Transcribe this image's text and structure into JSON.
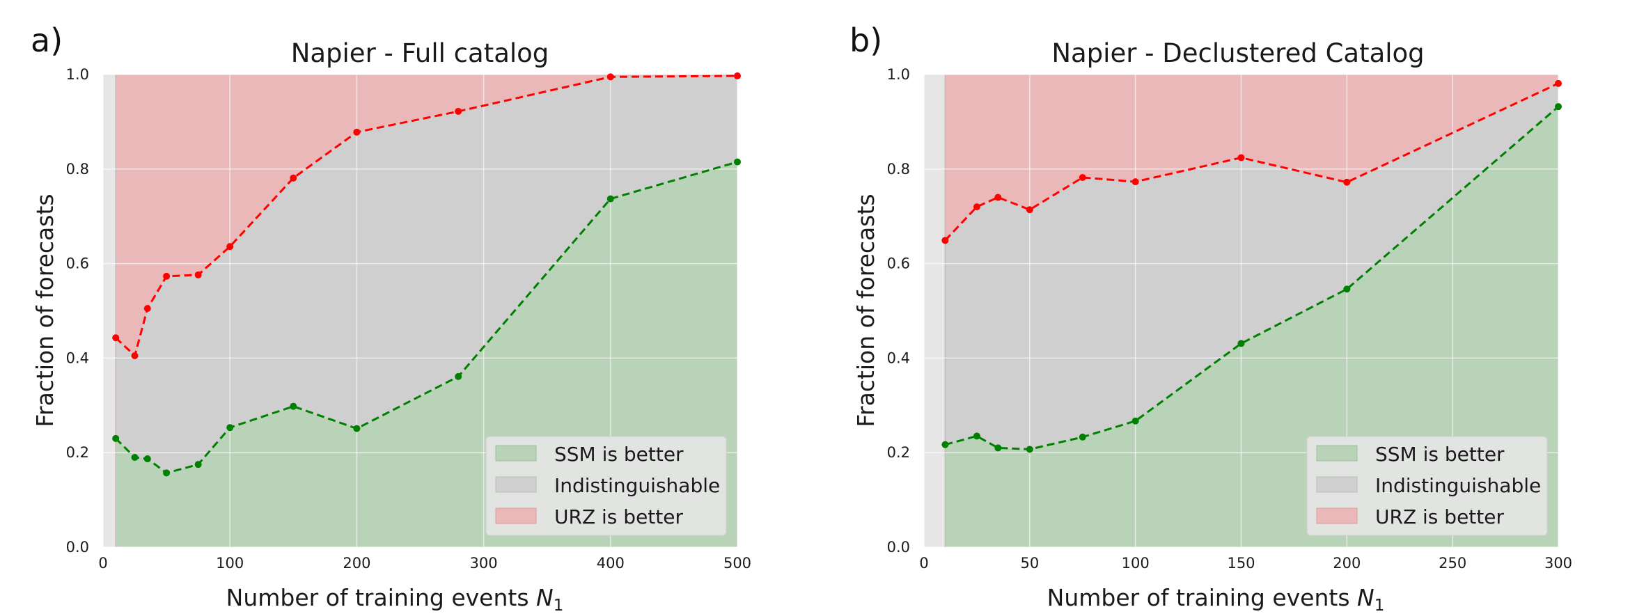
{
  "chart_data": [
    {
      "type": "area",
      "panel_label": "a)",
      "title": "Napier - Full catalog",
      "xlabel": "Number of training events",
      "xlabel_symbol": "N",
      "xlabel_sub": "1",
      "ylabel": "Fraction of forecasts",
      "xlim": [
        0,
        500
      ],
      "ylim": [
        0,
        1.0
      ],
      "xticks": [
        "0",
        "100",
        "200",
        "300",
        "400",
        "500"
      ],
      "yticks": [
        "0.0",
        "0.2",
        "0.4",
        "0.6",
        "0.8",
        "1.0"
      ],
      "grid": true,
      "legend_position": "lower-right",
      "x": [
        10,
        25,
        35,
        50,
        75,
        100,
        150,
        200,
        280,
        400,
        500
      ],
      "series": [
        {
          "name": "SSM is better",
          "color": "#008000",
          "values": [
            0.23,
            0.19,
            0.187,
            0.157,
            0.175,
            0.253,
            0.298,
            0.251,
            0.361,
            0.737,
            0.815
          ]
        },
        {
          "name": "URZ is better",
          "color": "#ff0000",
          "values": [
            0.443,
            0.405,
            0.505,
            0.573,
            0.576,
            0.636,
            0.781,
            0.878,
            0.922,
            0.995,
            0.997
          ]
        }
      ],
      "legend": [
        {
          "label": "SSM is better",
          "color": "#b9d3b9"
        },
        {
          "label": "Indistinguishable",
          "color": "#cfcfcf"
        },
        {
          "label": "URZ is better",
          "color": "#ebb8b9"
        }
      ]
    },
    {
      "type": "area",
      "panel_label": "b)",
      "title": "Napier - Declustered Catalog",
      "xlabel": "Number of training events",
      "xlabel_symbol": "N",
      "xlabel_sub": "1",
      "ylabel": "Fraction of forecasts",
      "xlim": [
        0,
        300
      ],
      "ylim": [
        0,
        1.0
      ],
      "xticks": [
        "0",
        "50",
        "100",
        "150",
        "200",
        "250",
        "300"
      ],
      "yticks": [
        "0.0",
        "0.2",
        "0.4",
        "0.6",
        "0.8",
        "1.0"
      ],
      "grid": true,
      "legend_position": "lower-right",
      "x": [
        10,
        25,
        35,
        50,
        75,
        100,
        150,
        200,
        300
      ],
      "series": [
        {
          "name": "SSM is better",
          "color": "#008000",
          "values": [
            0.217,
            0.235,
            0.21,
            0.207,
            0.233,
            0.267,
            0.431,
            0.546,
            0.932
          ]
        },
        {
          "name": "URZ is better",
          "color": "#ff0000",
          "values": [
            0.649,
            0.72,
            0.74,
            0.714,
            0.782,
            0.773,
            0.824,
            0.772,
            0.981
          ]
        }
      ],
      "legend": [
        {
          "label": "SSM is better",
          "color": "#b9d3b9"
        },
        {
          "label": "Indistinguishable",
          "color": "#cfcfcf"
        },
        {
          "label": "URZ is better",
          "color": "#ebb8b9"
        }
      ]
    }
  ]
}
